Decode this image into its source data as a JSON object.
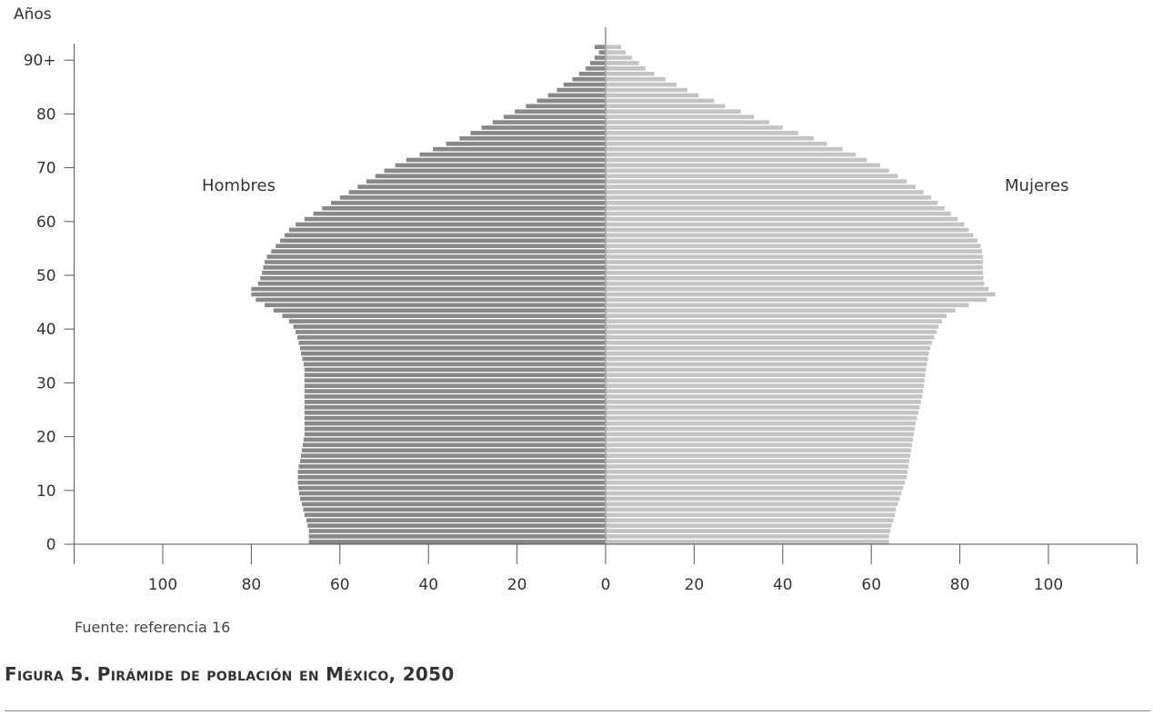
{
  "source": "Fuente: referencia 16",
  "caption": "Figura 5. Pirámide de población en México, 2050",
  "chart_data": {
    "type": "bar",
    "orientation": "horizontal-pyramid",
    "title": "",
    "ylabel": "Años",
    "xlabel": "",
    "x_range": [
      -120,
      120
    ],
    "y_range": [
      0,
      92
    ],
    "x_ticks": [
      {
        "value": -100,
        "label": "100"
      },
      {
        "value": -80,
        "label": "80"
      },
      {
        "value": -60,
        "label": "60"
      },
      {
        "value": -40,
        "label": "40"
      },
      {
        "value": -20,
        "label": "20"
      },
      {
        "value": 0,
        "label": "0"
      },
      {
        "value": 20,
        "label": "20"
      },
      {
        "value": 40,
        "label": "40"
      },
      {
        "value": 60,
        "label": "60"
      },
      {
        "value": 80,
        "label": "80"
      },
      {
        "value": 100,
        "label": "100"
      }
    ],
    "y_ticks": [
      {
        "value": 0,
        "label": "0"
      },
      {
        "value": 10,
        "label": "10"
      },
      {
        "value": 20,
        "label": "20"
      },
      {
        "value": 30,
        "label": "30"
      },
      {
        "value": 40,
        "label": "40"
      },
      {
        "value": 50,
        "label": "50"
      },
      {
        "value": 60,
        "label": "60"
      },
      {
        "value": 70,
        "label": "70"
      },
      {
        "value": 80,
        "label": "80"
      },
      {
        "value": 90,
        "label": "90+"
      }
    ],
    "ages": [
      0,
      1,
      2,
      3,
      4,
      5,
      6,
      7,
      8,
      9,
      10,
      11,
      12,
      13,
      14,
      15,
      16,
      17,
      18,
      19,
      20,
      21,
      22,
      23,
      24,
      25,
      26,
      27,
      28,
      29,
      30,
      31,
      32,
      33,
      34,
      35,
      36,
      37,
      38,
      39,
      40,
      41,
      42,
      43,
      44,
      45,
      46,
      47,
      48,
      49,
      50,
      51,
      52,
      53,
      54,
      55,
      56,
      57,
      58,
      59,
      60,
      61,
      62,
      63,
      64,
      65,
      66,
      67,
      68,
      69,
      70,
      71,
      72,
      73,
      74,
      75,
      76,
      77,
      78,
      79,
      80,
      81,
      82,
      83,
      84,
      85,
      86,
      87,
      88,
      89,
      90,
      91,
      92
    ],
    "series": [
      {
        "name": "Hombres",
        "side": "left",
        "color": "#888888",
        "values": [
          67,
          67,
          67,
          67.3,
          67.6,
          68,
          68.3,
          68.6,
          69,
          69.2,
          69.4,
          69.5,
          69.5,
          69.5,
          69.3,
          69,
          68.8,
          68.6,
          68.4,
          68.2,
          68,
          68,
          68,
          68,
          68,
          68,
          68,
          68,
          68,
          68,
          68,
          68,
          68,
          68.2,
          68.5,
          68.8,
          69,
          69.3,
          69.6,
          70,
          70.5,
          71.5,
          73,
          75,
          77,
          79,
          80,
          80,
          78.5,
          78,
          77.6,
          77.3,
          77,
          76.5,
          75.5,
          74.5,
          73.5,
          72.5,
          71.5,
          70,
          68,
          66,
          64,
          62,
          60,
          58,
          56,
          54,
          52,
          50,
          47.5,
          45,
          42,
          39,
          36,
          33,
          30.5,
          28,
          25.5,
          23,
          20.5,
          18,
          15.5,
          13,
          11,
          9.5,
          7.5,
          6,
          4.5,
          3.5,
          2.5,
          1.5,
          2.5
        ]
      },
      {
        "name": "Mujeres",
        "side": "right",
        "color": "#c4c4c4",
        "values": [
          64,
          64,
          64.3,
          64.6,
          65,
          65.3,
          65.6,
          66,
          66.4,
          66.8,
          67.2,
          67.6,
          68,
          68.2,
          68.4,
          68.6,
          68.8,
          69,
          69.2,
          69.4,
          69.6,
          69.8,
          70,
          70.3,
          70.6,
          70.9,
          71.2,
          71.5,
          71.7,
          71.9,
          72,
          72.2,
          72.4,
          72.6,
          72.8,
          73,
          73.3,
          73.7,
          74.2,
          74.7,
          75.2,
          76,
          77,
          79,
          82,
          86,
          88,
          86.5,
          85.5,
          85.3,
          85.2,
          85.2,
          85.2,
          85.2,
          85,
          84.7,
          84,
          83,
          82,
          81,
          79.5,
          78,
          76.5,
          75,
          73.5,
          71.8,
          70,
          68,
          66,
          64,
          62,
          59,
          56.5,
          53.5,
          50,
          47,
          43.5,
          40,
          37,
          33.5,
          30.5,
          27,
          24.5,
          21,
          18.5,
          16,
          13.5,
          11,
          9,
          7.5,
          6,
          4.5,
          3.5
        ]
      }
    ]
  }
}
